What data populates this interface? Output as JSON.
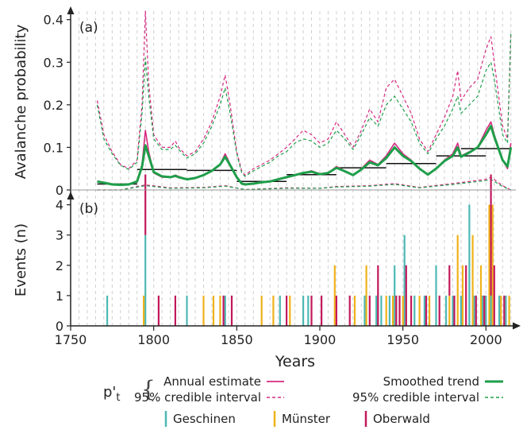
{
  "chart_data": [
    {
      "panel": "(a)",
      "type": "line",
      "ylabel": "Avalanche probability",
      "xlim": [
        1750,
        2018
      ],
      "ylim": [
        0,
        0.42
      ],
      "yticks": [
        0,
        0.1,
        0.2,
        0.3,
        0.4
      ],
      "ytick_labels": [
        "0",
        "0.1",
        "0.2",
        "0.3",
        "0.4"
      ],
      "grid": "vertical dashed lines every 5 years",
      "colors": {
        "annual": "#d6287f",
        "smoothed": "#1f9e4a",
        "step": "#111111"
      },
      "series": [
        {
          "name": "Annual estimate",
          "style": "solid",
          "color": "#d6287f",
          "x": [
            1766,
            1770,
            1775,
            1780,
            1785,
            1790,
            1793,
            1795,
            1797,
            1800,
            1805,
            1810,
            1813,
            1815,
            1820,
            1825,
            1830,
            1835,
            1840,
            1843,
            1846,
            1850,
            1853,
            1855,
            1860,
            1865,
            1870,
            1875,
            1880,
            1885,
            1890,
            1895,
            1900,
            1905,
            1910,
            1915,
            1920,
            1925,
            1930,
            1935,
            1940,
            1945,
            1950,
            1955,
            1960,
            1965,
            1970,
            1975,
            1980,
            1983,
            1985,
            1990,
            1995,
            2000,
            2003,
            2005,
            2010,
            2013,
            2015
          ],
          "y": [
            0.02,
            0.018,
            0.014,
            0.012,
            0.013,
            0.018,
            0.06,
            0.14,
            0.09,
            0.04,
            0.03,
            0.03,
            0.035,
            0.032,
            0.025,
            0.028,
            0.035,
            0.045,
            0.06,
            0.085,
            0.06,
            0.03,
            0.014,
            0.012,
            0.015,
            0.018,
            0.02,
            0.025,
            0.03,
            0.035,
            0.04,
            0.045,
            0.038,
            0.04,
            0.055,
            0.045,
            0.035,
            0.05,
            0.07,
            0.06,
            0.08,
            0.11,
            0.085,
            0.07,
            0.05,
            0.035,
            0.05,
            0.07,
            0.085,
            0.11,
            0.08,
            0.09,
            0.1,
            0.14,
            0.16,
            0.13,
            0.07,
            0.05,
            0.11
          ]
        },
        {
          "name": "95% credible interval",
          "style": "dashed",
          "color": "#d6287f",
          "x": [
            1766,
            1770,
            1775,
            1780,
            1785,
            1790,
            1793,
            1795,
            1797,
            1800,
            1805,
            1810,
            1813,
            1815,
            1820,
            1825,
            1830,
            1835,
            1840,
            1843,
            1846,
            1850,
            1853,
            1855,
            1860,
            1865,
            1870,
            1875,
            1880,
            1885,
            1890,
            1895,
            1900,
            1905,
            1910,
            1915,
            1920,
            1925,
            1930,
            1935,
            1940,
            1945,
            1950,
            1955,
            1960,
            1965,
            1970,
            1975,
            1980,
            1983,
            1985,
            1990,
            1995,
            2000,
            2003,
            2005,
            2010,
            2013,
            2015
          ],
          "y": [
            0.21,
            0.13,
            0.09,
            0.06,
            0.05,
            0.07,
            0.2,
            0.42,
            0.25,
            0.13,
            0.1,
            0.1,
            0.115,
            0.1,
            0.08,
            0.09,
            0.12,
            0.16,
            0.22,
            0.27,
            0.2,
            0.09,
            0.045,
            0.035,
            0.05,
            0.06,
            0.07,
            0.085,
            0.1,
            0.12,
            0.14,
            0.13,
            0.11,
            0.12,
            0.16,
            0.13,
            0.1,
            0.14,
            0.19,
            0.16,
            0.24,
            0.26,
            0.22,
            0.18,
            0.12,
            0.09,
            0.13,
            0.17,
            0.22,
            0.28,
            0.21,
            0.24,
            0.26,
            0.33,
            0.36,
            0.3,
            0.15,
            0.12,
            0.37
          ]
        },
        {
          "name": "Smoothed trend",
          "style": "solid",
          "color": "#1f9e4a",
          "x": [
            1766,
            1770,
            1775,
            1780,
            1785,
            1790,
            1793,
            1795,
            1797,
            1800,
            1805,
            1810,
            1813,
            1815,
            1820,
            1825,
            1830,
            1835,
            1840,
            1843,
            1846,
            1850,
            1853,
            1855,
            1860,
            1865,
            1870,
            1875,
            1880,
            1885,
            1890,
            1895,
            1900,
            1905,
            1910,
            1915,
            1920,
            1925,
            1930,
            1935,
            1940,
            1945,
            1950,
            1955,
            1960,
            1965,
            1970,
            1975,
            1980,
            1983,
            1985,
            1990,
            1995,
            2000,
            2003,
            2005,
            2010,
            2013,
            2015
          ],
          "y": [
            0.02,
            0.017,
            0.013,
            0.012,
            0.013,
            0.02,
            0.055,
            0.105,
            0.08,
            0.042,
            0.032,
            0.03,
            0.033,
            0.03,
            0.025,
            0.028,
            0.035,
            0.045,
            0.06,
            0.078,
            0.058,
            0.03,
            0.015,
            0.013,
            0.015,
            0.018,
            0.02,
            0.025,
            0.03,
            0.035,
            0.04,
            0.043,
            0.037,
            0.04,
            0.052,
            0.044,
            0.035,
            0.048,
            0.065,
            0.058,
            0.075,
            0.1,
            0.08,
            0.068,
            0.05,
            0.036,
            0.05,
            0.068,
            0.08,
            0.1,
            0.078,
            0.088,
            0.1,
            0.13,
            0.15,
            0.125,
            0.07,
            0.055,
            0.1
          ]
        },
        {
          "name": "95% credible interval",
          "style": "dashed",
          "color": "#1f9e4a",
          "x": [
            1766,
            1770,
            1775,
            1780,
            1785,
            1790,
            1793,
            1795,
            1797,
            1800,
            1805,
            1810,
            1813,
            1815,
            1820,
            1825,
            1830,
            1835,
            1840,
            1843,
            1846,
            1850,
            1853,
            1855,
            1860,
            1865,
            1870,
            1875,
            1880,
            1885,
            1890,
            1895,
            1900,
            1905,
            1910,
            1915,
            1920,
            1925,
            1930,
            1935,
            1940,
            1945,
            1950,
            1955,
            1960,
            1965,
            1970,
            1975,
            1980,
            1983,
            1985,
            1990,
            1995,
            2000,
            2003,
            2005,
            2010,
            2013,
            2015
          ],
          "y": [
            0.2,
            0.12,
            0.085,
            0.058,
            0.048,
            0.065,
            0.18,
            0.31,
            0.22,
            0.12,
            0.095,
            0.095,
            0.105,
            0.095,
            0.075,
            0.085,
            0.11,
            0.15,
            0.2,
            0.24,
            0.18,
            0.085,
            0.04,
            0.032,
            0.045,
            0.055,
            0.065,
            0.08,
            0.09,
            0.11,
            0.12,
            0.115,
            0.1,
            0.11,
            0.14,
            0.12,
            0.095,
            0.13,
            0.17,
            0.15,
            0.2,
            0.22,
            0.19,
            0.16,
            0.11,
            0.085,
            0.12,
            0.15,
            0.19,
            0.22,
            0.18,
            0.2,
            0.22,
            0.28,
            0.3,
            0.26,
            0.13,
            0.11,
            0.37
          ]
        },
        {
          "name": "lower interval (annual)",
          "style": "dashed",
          "color": "#d6287f",
          "x": [
            1766,
            1780,
            1795,
            1810,
            1830,
            1843,
            1855,
            1880,
            1900,
            1910,
            1930,
            1945,
            1960,
            1980,
            2000,
            2003,
            2010,
            2015
          ],
          "y": [
            0.0,
            0.0,
            0.012,
            0.005,
            0.006,
            0.01,
            0.001,
            0.005,
            0.004,
            0.008,
            0.01,
            0.015,
            0.006,
            0.015,
            0.025,
            0.03,
            0.01,
            0.0
          ]
        },
        {
          "name": "lower interval (smoothed)",
          "style": "dashed",
          "color": "#1f9e4a",
          "x": [
            1766,
            1780,
            1795,
            1810,
            1830,
            1843,
            1855,
            1880,
            1900,
            1910,
            1930,
            1945,
            1960,
            1980,
            2000,
            2003,
            2010,
            2015
          ],
          "y": [
            0.0,
            0.0,
            0.01,
            0.004,
            0.005,
            0.009,
            0.001,
            0.004,
            0.004,
            0.007,
            0.009,
            0.013,
            0.005,
            0.013,
            0.022,
            0.025,
            0.008,
            0.0
          ]
        }
      ],
      "steps": [
        {
          "x0": 1766,
          "x1": 1790,
          "y": 0.014
        },
        {
          "x0": 1790,
          "x1": 1820,
          "y": 0.048
        },
        {
          "x0": 1820,
          "x1": 1850,
          "y": 0.046
        },
        {
          "x0": 1850,
          "x1": 1880,
          "y": 0.02
        },
        {
          "x0": 1880,
          "x1": 1910,
          "y": 0.036
        },
        {
          "x0": 1910,
          "x1": 1940,
          "y": 0.052
        },
        {
          "x0": 1940,
          "x1": 1970,
          "y": 0.062
        },
        {
          "x0": 1970,
          "x1": 2000,
          "y": 0.08
        },
        {
          "x0": 1985,
          "x1": 2015,
          "y": 0.097
        }
      ]
    },
    {
      "panel": "(b)",
      "type": "bar",
      "ylabel": "Events (n)",
      "xlabel": "Years",
      "xlim": [
        1750,
        2018
      ],
      "xticks": [
        1750,
        1800,
        1850,
        1900,
        1950,
        2000
      ],
      "xtick_labels": [
        "1750",
        "1800",
        "1850",
        "1900",
        "1950",
        "2000"
      ],
      "ylim": [
        0,
        4.2
      ],
      "yticks": [
        0,
        1,
        2,
        3,
        4
      ],
      "ytick_labels": [
        "0",
        "1",
        "2",
        "3",
        "4"
      ],
      "colors": {
        "Geschinen": "#4db8b4",
        "Münster": "#f0b21a",
        "Oberwald": "#c2185b"
      },
      "series": [
        {
          "name": "Geschinen",
          "color": "#4db8b4",
          "events": [
            [
              1772,
              1
            ],
            [
              1795,
              3
            ],
            [
              1820,
              1
            ],
            [
              1843,
              1
            ],
            [
              1876,
              1
            ],
            [
              1890,
              1
            ],
            [
              1893,
              1
            ],
            [
              1927,
              1
            ],
            [
              1934,
              1
            ],
            [
              1937,
              1
            ],
            [
              1942,
              1
            ],
            [
              1945,
              2
            ],
            [
              1951,
              3
            ],
            [
              1957,
              1
            ],
            [
              1963,
              1
            ],
            [
              1970,
              2
            ],
            [
              1976,
              1
            ],
            [
              1980,
              1
            ],
            [
              1985,
              1
            ],
            [
              1990,
              4
            ],
            [
              1993,
              1
            ],
            [
              1998,
              1
            ],
            [
              2000,
              1
            ],
            [
              2003,
              1
            ],
            [
              2008,
              1
            ],
            [
              2012,
              1
            ]
          ]
        },
        {
          "name": "Münster",
          "color": "#f0b21a",
          "events": [
            [
              1794,
              1
            ],
            [
              1830,
              1
            ],
            [
              1836,
              1
            ],
            [
              1840,
              1
            ],
            [
              1865,
              1
            ],
            [
              1872,
              1
            ],
            [
              1882,
              1
            ],
            [
              1909,
              2
            ],
            [
              1921,
              1
            ],
            [
              1928,
              2
            ],
            [
              1940,
              1
            ],
            [
              1944,
              1
            ],
            [
              1950,
              1
            ],
            [
              1960,
              1
            ],
            [
              1966,
              1
            ],
            [
              1978,
              1
            ],
            [
              1983,
              3
            ],
            [
              1986,
              2
            ],
            [
              1992,
              3
            ],
            [
              1997,
              2
            ],
            [
              2002,
              4
            ],
            [
              2004,
              4
            ],
            [
              2009,
              1
            ],
            [
              2014,
              1
            ]
          ]
        },
        {
          "name": "Oberwald",
          "color": "#c2185b",
          "events": [
            [
              1795,
              2
            ],
            [
              1803,
              1
            ],
            [
              1813,
              1
            ],
            [
              1842,
              1
            ],
            [
              1847,
              1
            ],
            [
              1880,
              1
            ],
            [
              1895,
              1
            ],
            [
              1901,
              1
            ],
            [
              1910,
              1
            ],
            [
              1918,
              1
            ],
            [
              1930,
              1
            ],
            [
              1935,
              2
            ],
            [
              1946,
              1
            ],
            [
              1948,
              1
            ],
            [
              1952,
              2
            ],
            [
              1955,
              1
            ],
            [
              1964,
              1
            ],
            [
              1972,
              1
            ],
            [
              1978,
              1
            ],
            [
              1981,
              1
            ],
            [
              1988,
              2
            ],
            [
              1994,
              1
            ],
            [
              1999,
              1
            ],
            [
              2003,
              4
            ],
            [
              2005,
              2
            ],
            [
              2011,
              1
            ]
          ]
        }
      ]
    }
  ],
  "legend": {
    "symbol": "p'",
    "subscript": "t",
    "brace": "{",
    "annual_label": "Annual estimate",
    "annual_ci_label": "95% credible interval",
    "smoothed_label": "Smoothed trend",
    "smoothed_ci_label": "95% credible interval",
    "sites": [
      "Geschinen",
      "Münster",
      "Oberwald"
    ]
  }
}
